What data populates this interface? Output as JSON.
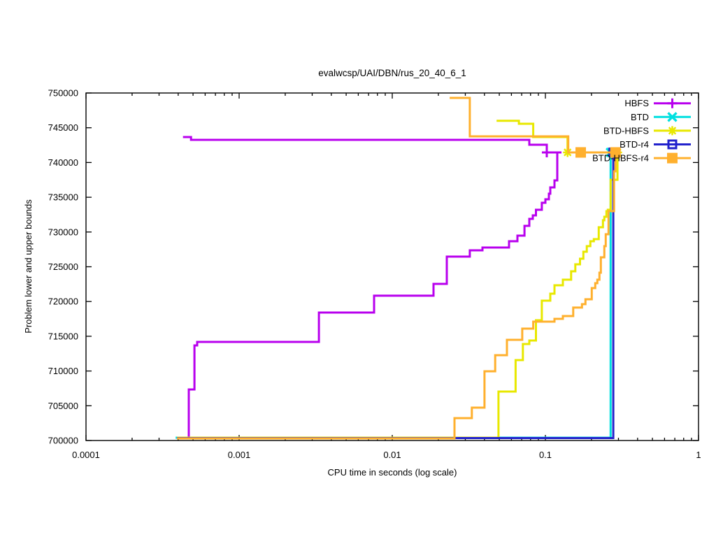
{
  "chart_data": {
    "type": "line",
    "title": "evalwcsp/UAI/DBN/rus_20_40_6_1",
    "xlabel": "CPU time in seconds (log scale)",
    "ylabel": "Problem lower and upper bounds",
    "axes": {
      "x_scale": "log",
      "xlim": [
        0.0001,
        1
      ],
      "ylim": [
        700000,
        750000
      ],
      "xticks": [
        {
          "v": 0.0001,
          "label": "0.0001"
        },
        {
          "v": 0.001,
          "label": "0.001"
        },
        {
          "v": 0.01,
          "label": "0.01"
        },
        {
          "v": 0.1,
          "label": "0.1"
        },
        {
          "v": 1,
          "label": "1"
        }
      ],
      "yticks": [
        {
          "v": 700000,
          "label": "700000"
        },
        {
          "v": 705000,
          "label": "705000"
        },
        {
          "v": 710000,
          "label": "710000"
        },
        {
          "v": 715000,
          "label": "715000"
        },
        {
          "v": 720000,
          "label": "720000"
        },
        {
          "v": 725000,
          "label": "725000"
        },
        {
          "v": 730000,
          "label": "730000"
        },
        {
          "v": 735000,
          "label": "735000"
        },
        {
          "v": 740000,
          "label": "740000"
        },
        {
          "v": 745000,
          "label": "745000"
        },
        {
          "v": 750000,
          "label": "750000"
        }
      ],
      "grid": false,
      "border_color": "#000000"
    },
    "legend_position": "top-right",
    "optimum_value": 741450,
    "series": [
      {
        "name": "HBFS",
        "color": "#b800ee",
        "marker": "plus",
        "marker_points": [
          [
            0.1021,
            741450
          ]
        ],
        "upper_bound": [
          [
            0.00043,
            743660
          ],
          [
            0.000485,
            743660
          ],
          [
            0.000485,
            743260
          ],
          [
            0.0785,
            743260
          ],
          [
            0.0785,
            742560
          ],
          [
            0.1021,
            742560
          ],
          [
            0.1021,
            741450
          ],
          [
            0.1274,
            741450
          ]
        ],
        "lower_bound": [
          [
            0.000469,
            700300
          ],
          [
            0.000469,
            707340
          ],
          [
            0.000511,
            707340
          ],
          [
            0.000511,
            713680
          ],
          [
            0.000532,
            713680
          ],
          [
            0.000532,
            714190
          ],
          [
            0.00332,
            714190
          ],
          [
            0.00332,
            718410
          ],
          [
            0.00761,
            718410
          ],
          [
            0.00761,
            720830
          ],
          [
            0.0186,
            720830
          ],
          [
            0.0186,
            722540
          ],
          [
            0.0227,
            722540
          ],
          [
            0.0227,
            726460
          ],
          [
            0.0321,
            726460
          ],
          [
            0.0321,
            727360
          ],
          [
            0.0388,
            727360
          ],
          [
            0.0388,
            727770
          ],
          [
            0.0579,
            727770
          ],
          [
            0.0579,
            728670
          ],
          [
            0.0657,
            728670
          ],
          [
            0.0657,
            729480
          ],
          [
            0.073,
            729480
          ],
          [
            0.073,
            730890
          ],
          [
            0.0785,
            730890
          ],
          [
            0.0785,
            731890
          ],
          [
            0.0828,
            731890
          ],
          [
            0.0828,
            732390
          ],
          [
            0.0868,
            732390
          ],
          [
            0.0868,
            733200
          ],
          [
            0.0948,
            733200
          ],
          [
            0.0948,
            734210
          ],
          [
            0.1,
            734210
          ],
          [
            0.1,
            734710
          ],
          [
            0.1054,
            734710
          ],
          [
            0.1054,
            735510
          ],
          [
            0.1076,
            735510
          ],
          [
            0.1076,
            736420
          ],
          [
            0.1146,
            736420
          ],
          [
            0.1146,
            737420
          ],
          [
            0.1196,
            737420
          ],
          [
            0.1196,
            741450
          ],
          [
            0.1274,
            741450
          ]
        ]
      },
      {
        "name": "BTD",
        "color": "#00e0e0",
        "marker": "cross",
        "marker_points": [
          [
            0.2667,
            741450
          ]
        ],
        "lower_bound": [
          [
            0.000385,
            700400
          ],
          [
            0.2667,
            700400
          ],
          [
            0.2667,
            741450
          ]
        ]
      },
      {
        "name": "BTD-HBFS",
        "color": "#e8e800",
        "marker": "asterisk",
        "marker_points": [
          [
            0.1396,
            741450
          ],
          [
            0.2958,
            741450
          ]
        ],
        "upper_bound": [
          [
            0.048,
            746000
          ],
          [
            0.0671,
            746000
          ],
          [
            0.0671,
            745570
          ],
          [
            0.0833,
            745570
          ],
          [
            0.0833,
            743660
          ],
          [
            0.1396,
            743660
          ],
          [
            0.1396,
            741450
          ],
          [
            0.2958,
            741450
          ]
        ],
        "lower_bound": [
          [
            0.000393,
            700400
          ],
          [
            0.0494,
            700400
          ],
          [
            0.0494,
            707040
          ],
          [
            0.0639,
            707040
          ],
          [
            0.0639,
            711570
          ],
          [
            0.0713,
            711570
          ],
          [
            0.0713,
            713880
          ],
          [
            0.0785,
            713880
          ],
          [
            0.0785,
            714390
          ],
          [
            0.0868,
            714390
          ],
          [
            0.0868,
            717300
          ],
          [
            0.0948,
            717300
          ],
          [
            0.0948,
            720120
          ],
          [
            0.1076,
            720120
          ],
          [
            0.1076,
            721130
          ],
          [
            0.1146,
            721130
          ],
          [
            0.1146,
            722330
          ],
          [
            0.1301,
            722330
          ],
          [
            0.1301,
            723140
          ],
          [
            0.1472,
            723140
          ],
          [
            0.1472,
            724350
          ],
          [
            0.1568,
            724350
          ],
          [
            0.1568,
            725350
          ],
          [
            0.1683,
            725350
          ],
          [
            0.1683,
            726160
          ],
          [
            0.177,
            726160
          ],
          [
            0.177,
            727160
          ],
          [
            0.1864,
            727160
          ],
          [
            0.1864,
            727970
          ],
          [
            0.1966,
            727970
          ],
          [
            0.1966,
            728670
          ],
          [
            0.2073,
            728670
          ],
          [
            0.2073,
            728970
          ],
          [
            0.223,
            728970
          ],
          [
            0.223,
            730680
          ],
          [
            0.2375,
            730680
          ],
          [
            0.2375,
            731690
          ],
          [
            0.2426,
            731690
          ],
          [
            0.2426,
            732190
          ],
          [
            0.2504,
            732190
          ],
          [
            0.2504,
            733000
          ],
          [
            0.2557,
            733000
          ],
          [
            0.2557,
            733200
          ],
          [
            0.2667,
            733200
          ],
          [
            0.2667,
            737520
          ],
          [
            0.2958,
            737520
          ],
          [
            0.2958,
            741450
          ]
        ]
      },
      {
        "name": "BTD-r4",
        "color": "#2222cc",
        "marker": "square-open",
        "marker_points": [
          [
            0.2777,
            741450
          ]
        ],
        "lower_bound": [
          [
            0.000393,
            700350
          ],
          [
            0.2777,
            700350
          ],
          [
            0.2777,
            741450
          ]
        ]
      },
      {
        "name": "BTD-HBFS-r4",
        "color": "#ffb02e",
        "marker": "square-filled",
        "marker_points": [
          [
            0.1701,
            741450
          ],
          [
            0.2867,
            741450
          ]
        ],
        "upper_bound": [
          [
            0.0237,
            749300
          ],
          [
            0.0321,
            749300
          ],
          [
            0.0321,
            743760
          ],
          [
            0.1411,
            743760
          ],
          [
            0.1411,
            741450
          ],
          [
            0.2867,
            741450
          ]
        ],
        "lower_bound": [
          [
            0.000393,
            700300
          ],
          [
            0.0255,
            700300
          ],
          [
            0.0255,
            703220
          ],
          [
            0.0331,
            703220
          ],
          [
            0.0331,
            704730
          ],
          [
            0.04,
            704730
          ],
          [
            0.04,
            709960
          ],
          [
            0.047,
            709960
          ],
          [
            0.047,
            712270
          ],
          [
            0.0561,
            712270
          ],
          [
            0.0561,
            714490
          ],
          [
            0.0706,
            714490
          ],
          [
            0.0706,
            716100
          ],
          [
            0.0833,
            716100
          ],
          [
            0.0833,
            717100
          ],
          [
            0.1146,
            717100
          ],
          [
            0.1146,
            717510
          ],
          [
            0.1301,
            717510
          ],
          [
            0.1301,
            717910
          ],
          [
            0.1519,
            717910
          ],
          [
            0.1519,
            719120
          ],
          [
            0.1733,
            719120
          ],
          [
            0.1733,
            719620
          ],
          [
            0.1826,
            719620
          ],
          [
            0.1826,
            720320
          ],
          [
            0.2008,
            720320
          ],
          [
            0.2008,
            721930
          ],
          [
            0.2117,
            721930
          ],
          [
            0.2117,
            722640
          ],
          [
            0.2184,
            722640
          ],
          [
            0.2184,
            723140
          ],
          [
            0.2254,
            723140
          ],
          [
            0.2254,
            724140
          ],
          [
            0.2302,
            724140
          ],
          [
            0.2302,
            726360
          ],
          [
            0.2426,
            726360
          ],
          [
            0.2426,
            727970
          ],
          [
            0.2478,
            727970
          ],
          [
            0.2478,
            729680
          ],
          [
            0.2584,
            729680
          ],
          [
            0.2584,
            733000
          ],
          [
            0.2807,
            733000
          ],
          [
            0.2807,
            738730
          ],
          [
            0.2867,
            738730
          ],
          [
            0.2867,
            741450
          ]
        ]
      }
    ]
  }
}
